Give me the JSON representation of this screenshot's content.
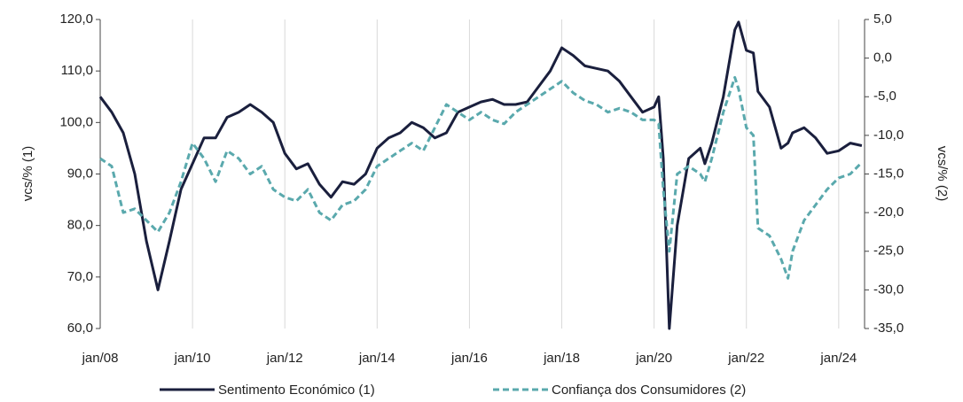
{
  "chart_data": {
    "type": "line",
    "y_label": "vcs/% (1)",
    "y2_label": "vcs/% (2)",
    "x": [
      2008,
      2008.25,
      2008.5,
      2008.75,
      2009,
      2009.25,
      2009.5,
      2009.75,
      2010,
      2010.25,
      2010.5,
      2010.75,
      2011,
      2011.25,
      2011.5,
      2011.75,
      2012,
      2012.25,
      2012.5,
      2012.75,
      2013,
      2013.25,
      2013.5,
      2013.75,
      2014,
      2014.25,
      2014.5,
      2014.75,
      2015,
      2015.25,
      2015.5,
      2015.75,
      2016,
      2016.25,
      2016.5,
      2016.75,
      2017,
      2017.25,
      2017.5,
      2017.75,
      2018,
      2018.25,
      2018.5,
      2018.75,
      2019,
      2019.25,
      2019.5,
      2019.75,
      2020,
      2020.1,
      2020.2,
      2020.33,
      2020.5,
      2020.75,
      2021,
      2021.1,
      2021.25,
      2021.5,
      2021.75,
      2021.83,
      2022,
      2022.15,
      2022.25,
      2022.5,
      2022.75,
      2022.9,
      2023,
      2023.25,
      2023.5,
      2023.75,
      2024,
      2024.25,
      2024.5
    ],
    "xlim": [
      2008,
      2024.56
    ],
    "xticks": [
      {
        "value": 2008,
        "label": "jan/08"
      },
      {
        "value": 2010,
        "label": "jan/10"
      },
      {
        "value": 2012,
        "label": "jan/12"
      },
      {
        "value": 2014,
        "label": "jan/14"
      },
      {
        "value": 2016,
        "label": "jan/16"
      },
      {
        "value": 2018,
        "label": "jan/18"
      },
      {
        "value": 2020,
        "label": "jan/20"
      },
      {
        "value": 2022,
        "label": "jan/22"
      },
      {
        "value": 2024,
        "label": "jan/24"
      }
    ],
    "ylim": [
      60,
      120
    ],
    "yticks": [
      {
        "value": 60,
        "label": "60,0"
      },
      {
        "value": 70,
        "label": "70,0"
      },
      {
        "value": 80,
        "label": "80,0"
      },
      {
        "value": 90,
        "label": "90,0"
      },
      {
        "value": 100,
        "label": "100,0"
      },
      {
        "value": 110,
        "label": "110,0"
      },
      {
        "value": 120,
        "label": "120,0"
      }
    ],
    "y2lim": [
      -35,
      5
    ],
    "y2ticks": [
      {
        "value": -35,
        "label": "-35,0"
      },
      {
        "value": -30,
        "label": "-30,0"
      },
      {
        "value": -25,
        "label": "-25,0"
      },
      {
        "value": -20,
        "label": "-20,0"
      },
      {
        "value": -15,
        "label": "-15,0"
      },
      {
        "value": -10,
        "label": "-10,0"
      },
      {
        "value": -5,
        "label": "-5,0"
      },
      {
        "value": 0,
        "label": "0,0"
      },
      {
        "value": 5,
        "label": "5,0"
      }
    ],
    "grid": "x",
    "legend": "bottom",
    "series": [
      {
        "name": "Sentimento Económico (1)",
        "color": "#1a1f3d",
        "style": "solid",
        "values": [
          105,
          102,
          98,
          90,
          77,
          67.5,
          77,
          87,
          92,
          97,
          97,
          101,
          102,
          103.5,
          102,
          100,
          94,
          91,
          92,
          88,
          85.5,
          88.5,
          88,
          90,
          95,
          97,
          98,
          100,
          99,
          97,
          98,
          102,
          103,
          104,
          104.5,
          103.5,
          103.5,
          104,
          107,
          110,
          114.5,
          113,
          111,
          110.5,
          110,
          108,
          105,
          102,
          103,
          105,
          93,
          60,
          80,
          93,
          95,
          92,
          96,
          105,
          118,
          119.5,
          114,
          113.5,
          106,
          103,
          95,
          96,
          98,
          99,
          97,
          94,
          94.5,
          96,
          95.5
        ]
      },
      {
        "name": "Confiança dos Consumidores (2)",
        "color": "#5aa9ad",
        "style": "dashed",
        "axis": "y2",
        "values": [
          -13,
          -14,
          -20,
          -19.5,
          -21,
          -22.5,
          -20,
          -16,
          -11,
          -13,
          -16,
          -12,
          -13,
          -15,
          -14,
          -17,
          -18,
          -18.5,
          -17,
          -20,
          -21,
          -19,
          -18.5,
          -17,
          -14,
          -13,
          -12,
          -11,
          -12,
          -9,
          -6,
          -7,
          -8,
          -7,
          -8,
          -8.5,
          -7,
          -6,
          -5,
          -4,
          -3,
          -4.5,
          -5.5,
          -6,
          -7,
          -6.5,
          -7,
          -8,
          -8,
          -8.5,
          -17,
          -25,
          -15,
          -14,
          -15,
          -16,
          -13,
          -7,
          -2.5,
          -4,
          -9,
          -10,
          -22,
          -23,
          -26,
          -28.5,
          -25,
          -21,
          -19,
          -17,
          -15.5,
          -15,
          -13.5
        ]
      }
    ]
  }
}
